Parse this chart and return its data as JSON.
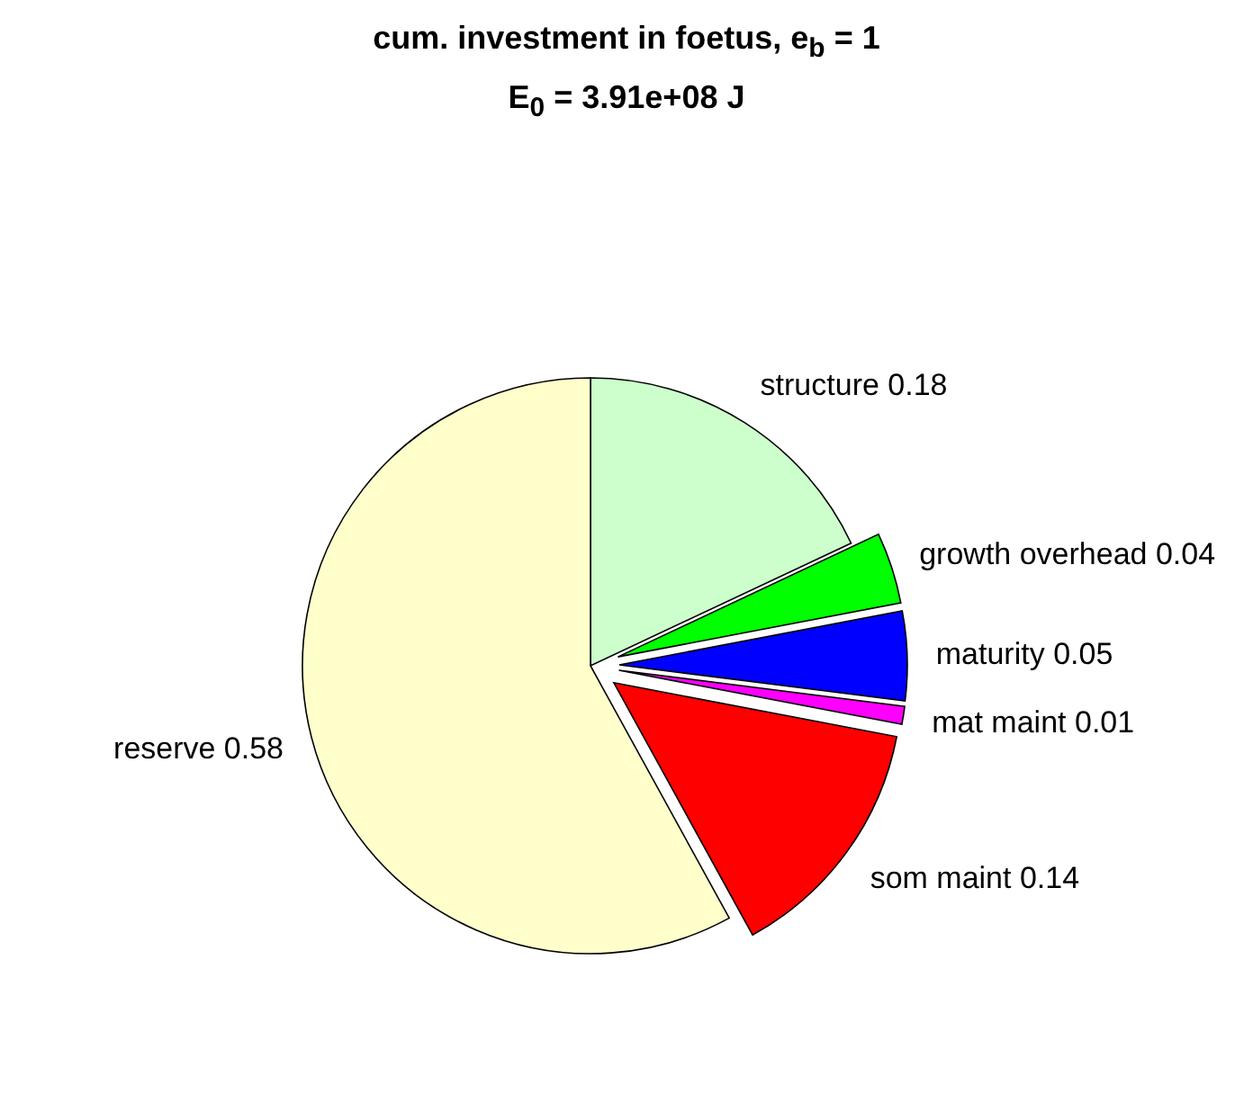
{
  "chart_data": {
    "type": "pie",
    "title": "cum. investment in foetus, e$_{b}$ = 1",
    "subtitle": "E$_{0}$ = 3.91e+08 J",
    "categories": [
      "structure",
      "growth overhead",
      "maturity",
      "mat maint",
      "som maint",
      "reserve"
    ],
    "values": [
      0.18,
      0.04,
      0.05,
      0.01,
      0.14,
      0.58
    ],
    "colors": [
      "#ccffcc",
      "#00ff00",
      "#0000ff",
      "#ff00ff",
      "#ff0000",
      "#ffffcc"
    ],
    "data_labels": true
  }
}
